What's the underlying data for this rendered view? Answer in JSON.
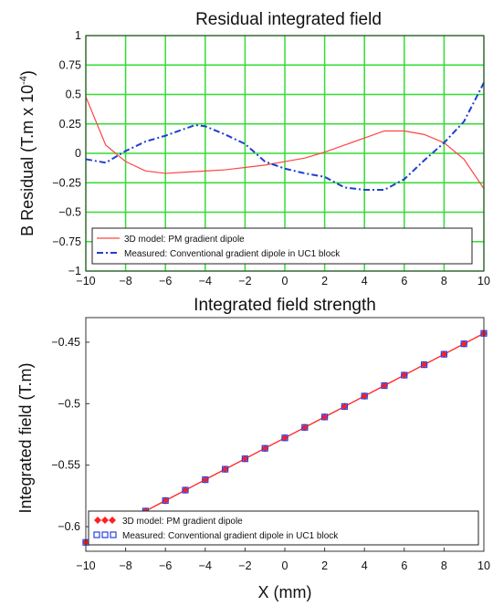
{
  "chart_data": [
    {
      "type": "line",
      "title": "Residual integrated field",
      "xlabel": "",
      "ylabel": "B Residual (T.m x 10",
      "ylabel_superscript": "-4",
      "ylabel_suffix": ")",
      "xlim": [
        -10,
        10
      ],
      "ylim": [
        -1,
        1
      ],
      "xticks": [
        -10,
        -8,
        -6,
        -4,
        -2,
        0,
        2,
        4,
        6,
        8,
        10
      ],
      "xtick_labels": [
        "−10",
        "−8",
        "−6",
        "−4",
        "−2",
        "0",
        "2",
        "4",
        "6",
        "8",
        "10"
      ],
      "yticks": [
        -1,
        -0.75,
        -0.5,
        -0.25,
        0,
        0.25,
        0.5,
        0.75,
        1
      ],
      "ytick_labels": [
        "−1",
        "−0.75",
        "−0.5",
        "−0.25",
        "0",
        "0.25",
        "0.5",
        "0.75",
        "1"
      ],
      "grid": true,
      "grid_color": "#33dd33",
      "legend_position": "bottom",
      "series": [
        {
          "name": "3D model: PM gradient dipole",
          "color": "#ff4444",
          "style": "solid",
          "x": [
            -10,
            -9,
            -8,
            -7,
            -6,
            -5,
            -4,
            -3,
            -2,
            -1,
            0,
            1,
            2,
            3,
            4,
            5,
            6,
            7,
            8,
            9,
            10
          ],
          "y": [
            0.48,
            0.07,
            -0.07,
            -0.15,
            -0.17,
            -0.16,
            -0.15,
            -0.14,
            -0.12,
            -0.1,
            -0.07,
            -0.04,
            0.01,
            0.07,
            0.13,
            0.19,
            0.19,
            0.16,
            0.09,
            -0.05,
            -0.3
          ]
        },
        {
          "name": "Measured: Conventional gradient dipole in UC1 block",
          "color": "#1f3fd1",
          "style": "dashdot",
          "x": [
            -10,
            -9,
            -8,
            -7,
            -6,
            -5,
            -4.5,
            -4,
            -3,
            -2,
            -1,
            0,
            1,
            2,
            3,
            4,
            5,
            6,
            7,
            8,
            9,
            10
          ],
          "y": [
            -0.05,
            -0.08,
            0.02,
            0.1,
            0.15,
            0.21,
            0.24,
            0.23,
            0.16,
            0.08,
            -0.07,
            -0.13,
            -0.17,
            -0.2,
            -0.29,
            -0.31,
            -0.31,
            -0.22,
            -0.06,
            0.09,
            0.27,
            0.6
          ]
        }
      ]
    },
    {
      "type": "line",
      "title": "Integrated field strength",
      "xlabel": "X (mm)",
      "ylabel": "Integrated field (T.m)",
      "xlim": [
        -10,
        10
      ],
      "ylim": [
        -0.62,
        -0.43
      ],
      "xticks": [
        -10,
        -8,
        -6,
        -4,
        -2,
        0,
        2,
        4,
        6,
        8,
        10
      ],
      "xtick_labels": [
        "−10",
        "−8",
        "−6",
        "−4",
        "−2",
        "0",
        "2",
        "4",
        "6",
        "8",
        "10"
      ],
      "yticks": [
        -0.6,
        -0.55,
        -0.5,
        -0.45
      ],
      "ytick_labels": [
        "−0.6",
        "−0.55",
        "−0.5",
        "−0.45"
      ],
      "grid": false,
      "legend_position": "bottom-left",
      "series": [
        {
          "name": "3D model: PM gradient dipole",
          "color": "#ff2020",
          "marker": "diamond",
          "x": [
            -10,
            -9,
            -8,
            -7,
            -6,
            -5,
            -4,
            -3,
            -2,
            -1,
            0,
            1,
            2,
            3,
            4,
            5,
            6,
            7,
            8,
            9,
            10
          ],
          "y": [
            -0.6128,
            -0.6043,
            -0.5958,
            -0.5873,
            -0.5788,
            -0.5703,
            -0.5618,
            -0.5533,
            -0.5448,
            -0.5363,
            -0.5278,
            -0.5193,
            -0.5108,
            -0.5023,
            -0.4938,
            -0.4853,
            -0.4768,
            -0.4683,
            -0.4598,
            -0.4513,
            -0.4428
          ]
        },
        {
          "name": "Measured: Conventional gradient dipole in UC1 block",
          "color": "#2a3fe0",
          "marker": "square-open",
          "x": [
            -10,
            -9,
            -8,
            -7,
            -6,
            -5,
            -4,
            -3,
            -2,
            -1,
            0,
            1,
            2,
            3,
            4,
            5,
            6,
            7,
            8,
            9,
            10
          ],
          "y": [
            -0.6128,
            -0.6043,
            -0.5958,
            -0.5873,
            -0.5788,
            -0.5703,
            -0.5618,
            -0.5533,
            -0.5448,
            -0.5363,
            -0.5278,
            -0.5193,
            -0.5108,
            -0.5023,
            -0.4938,
            -0.4853,
            -0.4768,
            -0.4683,
            -0.4598,
            -0.4513,
            -0.4428
          ]
        }
      ]
    }
  ]
}
